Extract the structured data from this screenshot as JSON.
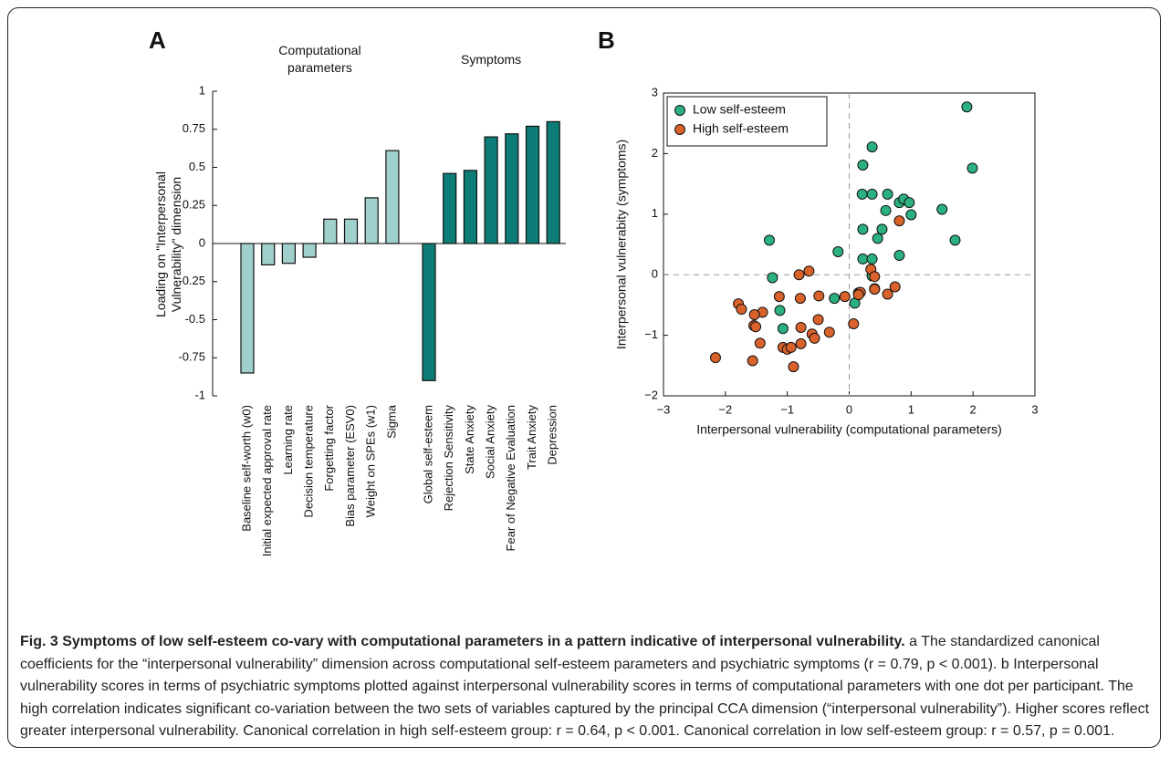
{
  "chart_data": [
    {
      "type": "bar",
      "panel": "A",
      "ylabel": "Loading on \"Interpersonal Vulnerability\" dimension",
      "ylim": [
        -1,
        1
      ],
      "yticks": [
        1,
        0.75,
        0.5,
        0.25,
        0,
        -0.25,
        -0.5,
        -0.75,
        -1
      ],
      "groups": [
        {
          "name": "Computational parameters",
          "color": "#9fd0cb",
          "categories": [
            "Baseline self-worth (w0)",
            "Initial expected approval rate",
            "Learning rate",
            "Decision temperature",
            "Forgetting factor",
            "Bias parameter (ESV0)",
            "Weight on SPEs (w1)",
            "Sigma"
          ],
          "values": [
            -0.85,
            -0.14,
            -0.13,
            -0.09,
            0.16,
            0.16,
            0.3,
            0.61
          ]
        },
        {
          "name": "Symptoms",
          "color": "#0e7c76",
          "categories": [
            "Global self-esteem",
            "Rejection Sensitivity",
            "State Anxiety",
            "Social Anxiety",
            "Fear of Negative Evaluation",
            "Trait Anxiety",
            "Depression"
          ],
          "values": [
            -0.9,
            0.46,
            0.48,
            0.7,
            0.72,
            0.77,
            0.8
          ]
        }
      ]
    },
    {
      "type": "scatter",
      "panel": "B",
      "xlabel": "Interpersonal vulnerability (computational parameters)",
      "ylabel": "Interpersonal vulnerabity (symptoms)",
      "xlim": [
        -3,
        3
      ],
      "ylim": [
        -2,
        3
      ],
      "xticks": [
        {
          "value": -3,
          "label": "−3"
        },
        {
          "value": -2,
          "label": "−2"
        },
        {
          "value": -1,
          "label": "−1"
        },
        0,
        1,
        2,
        3
      ],
      "yticks": [
        {
          "value": -2,
          "label": "−2"
        },
        {
          "value": -1,
          "label": "−1"
        },
        0,
        1,
        2,
        3
      ],
      "legend": "upper left",
      "series": [
        {
          "name": "Low self-esteem",
          "color": "#2bb07f",
          "x": [
            1.9,
            1.99,
            0.37,
            0.22,
            0.21,
            0.22,
            0.53,
            0.46,
            0.62,
            0.37,
            0.59,
            0.81,
            0.88,
            0.97,
            1.0,
            1.5,
            1.71,
            0.81,
            0.22,
            0.37,
            0.37,
            0.41,
            0.15,
            0.09,
            -0.24,
            -0.18,
            -1.29,
            -1.24,
            -1.12,
            -1.07
          ],
          "values": [
            2.77,
            1.76,
            2.11,
            1.81,
            1.33,
            0.75,
            0.75,
            0.6,
            1.33,
            1.33,
            1.06,
            1.19,
            1.25,
            1.19,
            0.99,
            1.08,
            0.57,
            0.32,
            0.26,
            0.26,
            -0.02,
            -0.23,
            -0.3,
            -0.47,
            -0.39,
            0.38,
            0.57,
            -0.05,
            -0.59,
            -0.89
          ]
        },
        {
          "name": "High self-esteem",
          "color": "#d9622b",
          "x": [
            0.35,
            0.41,
            0.41,
            0.18,
            0.15,
            -0.07,
            0.07,
            0.74,
            0.62,
            0.81,
            -0.81,
            -0.65,
            -0.49,
            -0.79,
            -0.5,
            -0.78,
            -0.6,
            -0.56,
            -0.32,
            -0.78,
            -1.4,
            -1.13,
            -1.54,
            -1.51,
            -1.53,
            -1.79,
            -1.74,
            -1.44,
            -1.07,
            -1.0,
            -0.94,
            -1.56,
            -2.16,
            -0.9
          ],
          "values": [
            0.09,
            -0.03,
            -0.24,
            -0.29,
            -0.33,
            -0.36,
            -0.81,
            -0.2,
            -0.32,
            0.89,
            0.0,
            0.06,
            -0.35,
            -0.39,
            -0.74,
            -0.87,
            -0.98,
            -1.05,
            -0.95,
            -1.14,
            -0.62,
            -0.36,
            -0.84,
            -0.86,
            -0.66,
            -0.48,
            -0.57,
            -1.13,
            -1.2,
            -1.23,
            -1.2,
            -1.42,
            -1.37,
            -1.52
          ]
        }
      ]
    }
  ],
  "caption": {
    "title": "Fig. 3 Symptoms of low self-esteem co-vary with computational parameters in a pattern indicative of interpersonal vulnerability.",
    "body": "a The standardized canonical coefficients for the “interpersonal vulnerability” dimension across computational self-esteem parameters and psychiatric symptoms (r = 0.79, p < 0.001). b Interpersonal vulnerability scores in terms of psychiatric symptoms plotted against interpersonal vulnerability scores in terms of computational parameters with one dot per participant. The high correlation indicates significant co-variation between the two sets of variables captured by the principal CCA dimension (“interpersonal vulnerability”). Higher scores reflect greater interpersonal vulnerability. Canonical correlation in high self-esteem group: r = 0.64, p < 0.001. Canonical correlation in low self-esteem group: r = 0.57, p = 0.001."
  }
}
